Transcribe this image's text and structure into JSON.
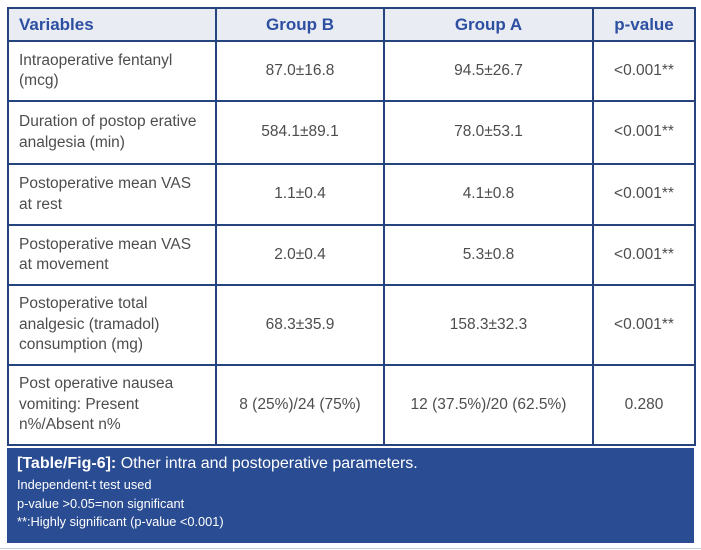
{
  "table": {
    "columns": [
      "Variables",
      "Group B",
      "Group A",
      "p-value"
    ],
    "rows": [
      {
        "cells": [
          "Intraoperative fentanyl (mcg)",
          "87.0±16.8",
          "94.5±26.7",
          "<0.001**"
        ]
      },
      {
        "cells": [
          "Duration of postop erative analgesia (min)",
          "584.1±89.1",
          "78.0±53.1",
          "<0.001**"
        ]
      },
      {
        "cells": [
          "Postoperative mean VAS at rest",
          "1.1±0.4",
          "4.1±0.8",
          "<0.001**"
        ]
      },
      {
        "cells": [
          "Postoperative mean VAS at movement",
          "2.0±0.4",
          "5.3±0.8",
          "<0.001**"
        ]
      },
      {
        "cells": [
          "Postoperative total analgesic (tramadol) consumption (mg)",
          "68.3±35.9",
          "158.3±32.3",
          "<0.001**"
        ]
      },
      {
        "cells": [
          "Post operative nausea vomiting: Present n%/Absent n%",
          "8 (25%)/24 (75%)",
          "12 (37.5%)/20 (62.5%)",
          "0.280"
        ]
      }
    ]
  },
  "caption": {
    "label": "[Table/Fig-6]:",
    "title": " Other intra and postoperative parameters.",
    "notes": [
      "Independent-t test used",
      "p-value >0.05=non significant",
      "**:Highly significant (p-value <0.001)"
    ]
  },
  "colors": {
    "band_background": "#2a4c92",
    "header_background": "#eaecf4",
    "header_text": "#2d4fa1",
    "border": "#26437e",
    "body_text": "#4c4d4f"
  }
}
